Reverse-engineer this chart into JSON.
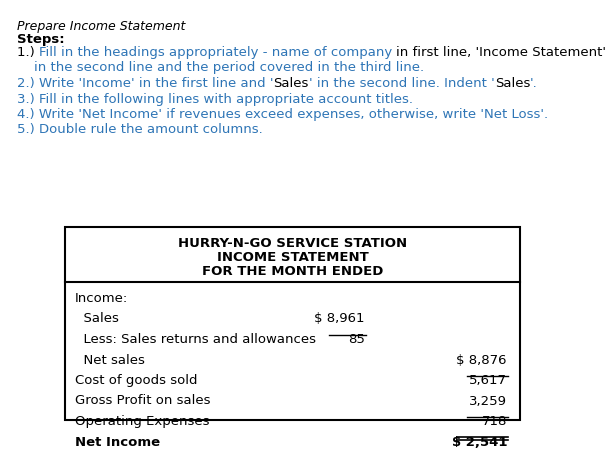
{
  "title": "Prepare Income Statement",
  "steps_label": "Steps:",
  "bg_color": "#ffffff",
  "black": "#000000",
  "blue": "#2e75b6",
  "step_lines": [
    [
      {
        "text": "1.) ",
        "color": "black",
        "bold": false
      },
      {
        "text": "Fill in the headings appropriately - name of company ",
        "color": "blue",
        "bold": false
      },
      {
        "text": "in first line, 'Income Statement'",
        "color": "black",
        "bold": false
      }
    ],
    [
      {
        "text": "    in the second line and the period covered in the third line.",
        "color": "blue",
        "bold": false
      }
    ],
    [
      {
        "text": "2.) Write 'Income' in the first line and '",
        "color": "blue",
        "bold": false
      },
      {
        "text": "Sales",
        "color": "black",
        "bold": false
      },
      {
        "text": "' in the second line. Indent '",
        "color": "blue",
        "bold": false
      },
      {
        "text": "Sales",
        "color": "black",
        "bold": false
      },
      {
        "text": "'.",
        "color": "blue",
        "bold": false
      }
    ],
    [
      {
        "text": "3.) Fill in the following lines with appropriate account titles.",
        "color": "blue",
        "bold": false
      }
    ],
    [
      {
        "text": "4.) Write 'Net Income' if revenues exceed expenses, otherwise, write 'Net Loss'.",
        "color": "blue",
        "bold": false
      }
    ],
    [
      {
        "text": "5.) Double rule the amount columns.",
        "color": "blue",
        "bold": false
      }
    ]
  ],
  "table_header": [
    "HURRY-N-GO SERVICE STATION",
    "INCOME STATEMENT",
    "FOR THE MONTH ENDED"
  ],
  "table_rows": [
    {
      "label": "Income:",
      "col1": "",
      "col2": "",
      "indent": 0,
      "bold": false,
      "underline_col1": false,
      "underline_col2": false,
      "double_underline_col2": false
    },
    {
      "label": "  Sales",
      "col1": "$ 8,961",
      "col2": "",
      "indent": 0,
      "bold": false,
      "underline_col1": false,
      "underline_col2": false,
      "double_underline_col2": false
    },
    {
      "label": "  Less: Sales returns and allowances",
      "col1": "85",
      "col2": "",
      "indent": 0,
      "bold": false,
      "underline_col1": true,
      "underline_col2": false,
      "double_underline_col2": false
    },
    {
      "label": "  Net sales",
      "col1": "",
      "col2": "$ 8,876",
      "indent": 0,
      "bold": false,
      "underline_col1": false,
      "underline_col2": false,
      "double_underline_col2": false
    },
    {
      "label": "Cost of goods sold",
      "col1": "",
      "col2": "5,617",
      "indent": 0,
      "bold": false,
      "underline_col1": false,
      "underline_col2": true,
      "double_underline_col2": false
    },
    {
      "label": "Gross Profit on sales",
      "col1": "",
      "col2": "3,259",
      "indent": 0,
      "bold": false,
      "underline_col1": false,
      "underline_col2": false,
      "double_underline_col2": false
    },
    {
      "label": "Operating Expenses",
      "col1": "",
      "col2": "718",
      "indent": 0,
      "bold": false,
      "underline_col1": false,
      "underline_col2": true,
      "double_underline_col2": false
    },
    {
      "label": "Net Income",
      "col1": "",
      "col2": "$ 2,541",
      "indent": 0,
      "bold": true,
      "underline_col1": false,
      "underline_col2": false,
      "double_underline_col2": true
    }
  ],
  "fontsize_title": 9,
  "fontsize_steps": 9.5,
  "fontsize_table": 9.5
}
